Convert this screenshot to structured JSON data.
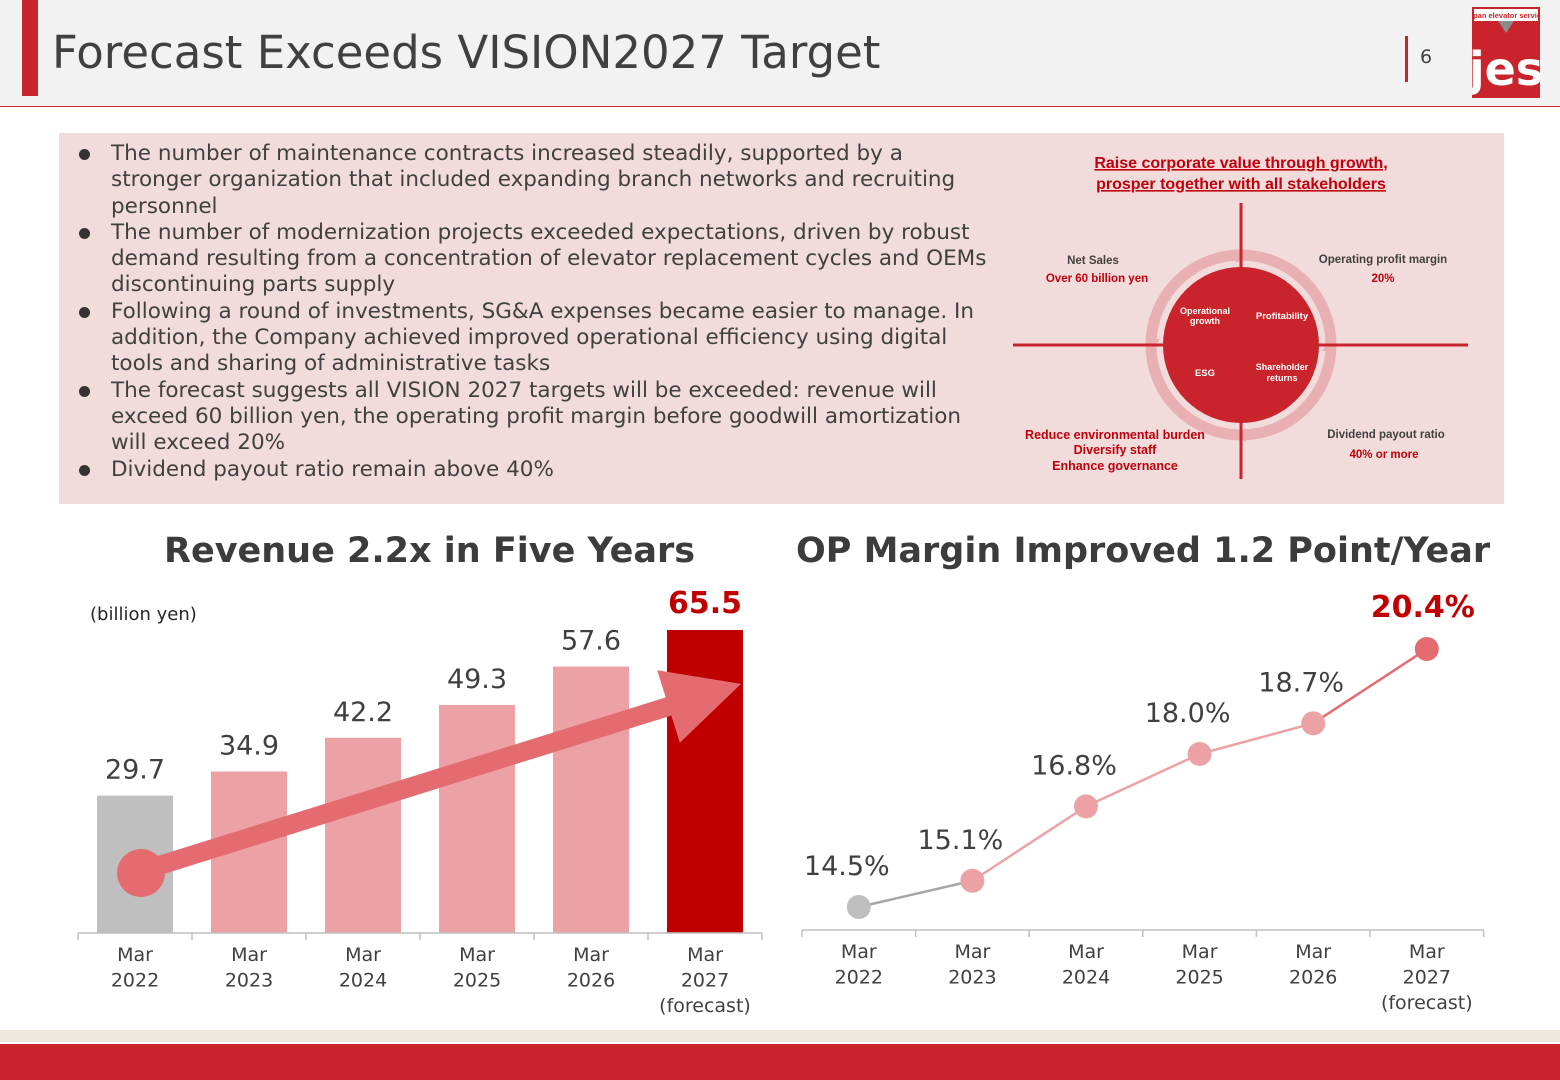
{
  "header": {
    "title": "Forecast Exceeds VISION2027 Target",
    "page_number": "6"
  },
  "logo": {
    "top_text": "japan elevator service",
    "mark": "jes"
  },
  "summary": {
    "bullets": [
      "The number of maintenance contracts increased steadily, supported by a stronger organization that included expanding branch networks and recruiting personnel",
      "The number of modernization projects exceeded expectations, driven by robust demand resulting from a concentration of elevator replacement cycles and OEMs discontinuing parts supply",
      "Following a round of investments, SG&A expenses became easier to manage. In addition, the Company achieved improved operational efficiency using digital tools and sharing of administrative tasks",
      "The forecast suggests all VISION 2027 targets will be exceeded: revenue will exceed 60 billion yen, the operating profit margin before goodwill amortization will exceed 20%",
      "Dividend payout ratio remain above 40%"
    ]
  },
  "vision_diagram": {
    "headline_1": "Raise corporate value through growth,",
    "headline_2": "prosper together with all stakeholders",
    "net_sales_label": "Net Sales",
    "net_sales_value": "Over 60 billion yen",
    "op_margin_label": "Operating profit margin",
    "op_margin_value": "20%",
    "dividend_label": "Dividend payout ratio",
    "dividend_value": "40% or more",
    "esg_line_1": "Reduce environmental burden",
    "esg_line_2": "Diversify staff",
    "esg_line_3": "Enhance governance",
    "q1": [
      "Operational",
      "growth"
    ],
    "q2": [
      "Profitability"
    ],
    "q3": [
      "ESG"
    ],
    "q4": [
      "Shareholder",
      "returns"
    ],
    "colors": {
      "red": "#c9242b",
      "ring": "#e8b0b3",
      "headline": "#c0000c"
    }
  },
  "chart_data": [
    {
      "type": "bar",
      "title": "Revenue 2.2x in Five Years",
      "unit_label": "(billion yen)",
      "categories": [
        [
          "Mar",
          "2022"
        ],
        [
          "Mar",
          "2023"
        ],
        [
          "Mar",
          "2024"
        ],
        [
          "Mar",
          "2025"
        ],
        [
          "Mar",
          "2026"
        ],
        [
          "Mar",
          "2027",
          "(forecast)"
        ]
      ],
      "values": [
        29.7,
        34.9,
        42.2,
        49.3,
        57.6,
        65.5
      ],
      "value_labels": [
        "29.7",
        "34.9",
        "42.2",
        "49.3",
        "57.6",
        "65.5"
      ],
      "bar_colors": [
        "#bfbfbf",
        "#eca2a4",
        "#eca2a4",
        "#eca2a4",
        "#eca2a4",
        "#c00000"
      ],
      "label_colors": [
        "#404040",
        "#404040",
        "#404040",
        "#404040",
        "#404040",
        "#c00000"
      ],
      "trend_arrow_color": "#e46c70",
      "ylim": [
        0,
        65.5
      ],
      "grid": false,
      "legend": "none"
    },
    {
      "type": "line",
      "title": "OP Margin Improved 1.2 Point/Year",
      "categories": [
        [
          "Mar",
          "2022"
        ],
        [
          "Mar",
          "2023"
        ],
        [
          "Mar",
          "2024"
        ],
        [
          "Mar",
          "2025"
        ],
        [
          "Mar",
          "2026"
        ],
        [
          "Mar",
          "2027",
          "(forecast)"
        ]
      ],
      "values": [
        14.5,
        15.1,
        16.8,
        18.0,
        18.7,
        20.4
      ],
      "value_labels": [
        "14.5%",
        "15.1%",
        "16.8%",
        "18.0%",
        "18.7%",
        "20.4%"
      ],
      "point_colors": [
        "#bfbfbf",
        "#eca2a4",
        "#eca2a4",
        "#eca2a4",
        "#eca2a4",
        "#e46c70"
      ],
      "segment_colors": [
        "#a6a6a6",
        "#eca2a4",
        "#eca2a4",
        "#eca2a4",
        "#e46c70"
      ],
      "label_colors": [
        "#404040",
        "#404040",
        "#404040",
        "#404040",
        "#404040",
        "#c00000"
      ],
      "ylim": [
        14.5,
        20.4
      ],
      "grid": false,
      "legend": "none"
    }
  ]
}
